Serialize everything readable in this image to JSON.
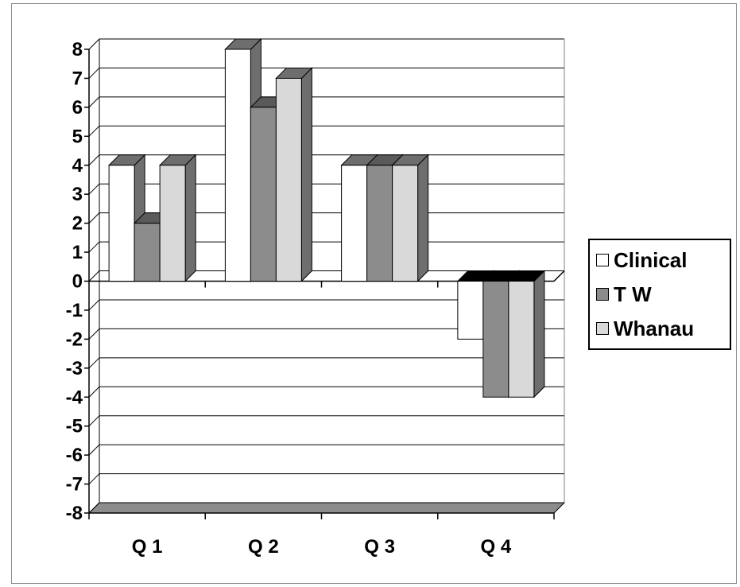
{
  "chart_data": {
    "type": "bar",
    "categories": [
      "Q 1",
      "Q 2",
      "Q 3",
      "Q 4"
    ],
    "series": [
      {
        "name": "Clinical",
        "values": [
          4,
          8,
          4,
          -2
        ],
        "color": "#ffffff",
        "side_color": "#6e6e6e"
      },
      {
        "name": "T W",
        "values": [
          2,
          6,
          4,
          -4
        ],
        "color": "#8c8c8c",
        "side_color": "#5a5a5a"
      },
      {
        "name": "Whanau",
        "values": [
          4,
          7,
          4,
          -4
        ],
        "color": "#d9d9d9",
        "side_color": "#6e6e6e"
      }
    ],
    "yticks": [
      "8",
      "7",
      "6",
      "5",
      "4",
      "3",
      "2",
      "1",
      "0",
      "-1",
      "-2",
      "-3",
      "-4",
      "-5",
      "-6",
      "-7",
      "-8"
    ],
    "ylim": [
      -8,
      8
    ],
    "grid": true,
    "legend_position": "right",
    "three_d": true,
    "title": "",
    "xlabel": "",
    "ylabel": ""
  }
}
